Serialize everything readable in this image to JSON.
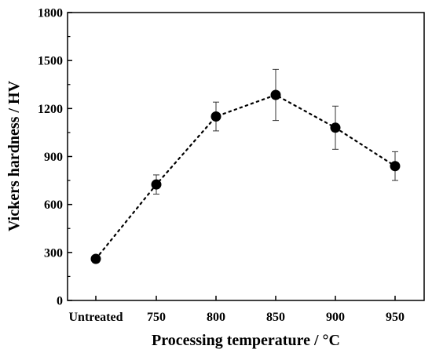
{
  "chart_data": {
    "type": "scatter",
    "xlabel": "Processing temperature / °C",
    "ylabel": "Vickers hardness / HV",
    "categories": [
      "Untreated",
      "750",
      "800",
      "850",
      "900",
      "950"
    ],
    "ylim": [
      0,
      1800
    ],
    "yticks": [
      0,
      300,
      600,
      900,
      1200,
      1500,
      1800
    ],
    "series": [
      {
        "values": [
          260,
          725,
          1150,
          1285,
          1080,
          840
        ],
        "errors": [
          0,
          60,
          90,
          160,
          135,
          90
        ],
        "marker": "filled-circle",
        "connector": "dotted-line",
        "color": "#000000"
      }
    ],
    "grid": false,
    "legend": "none"
  }
}
